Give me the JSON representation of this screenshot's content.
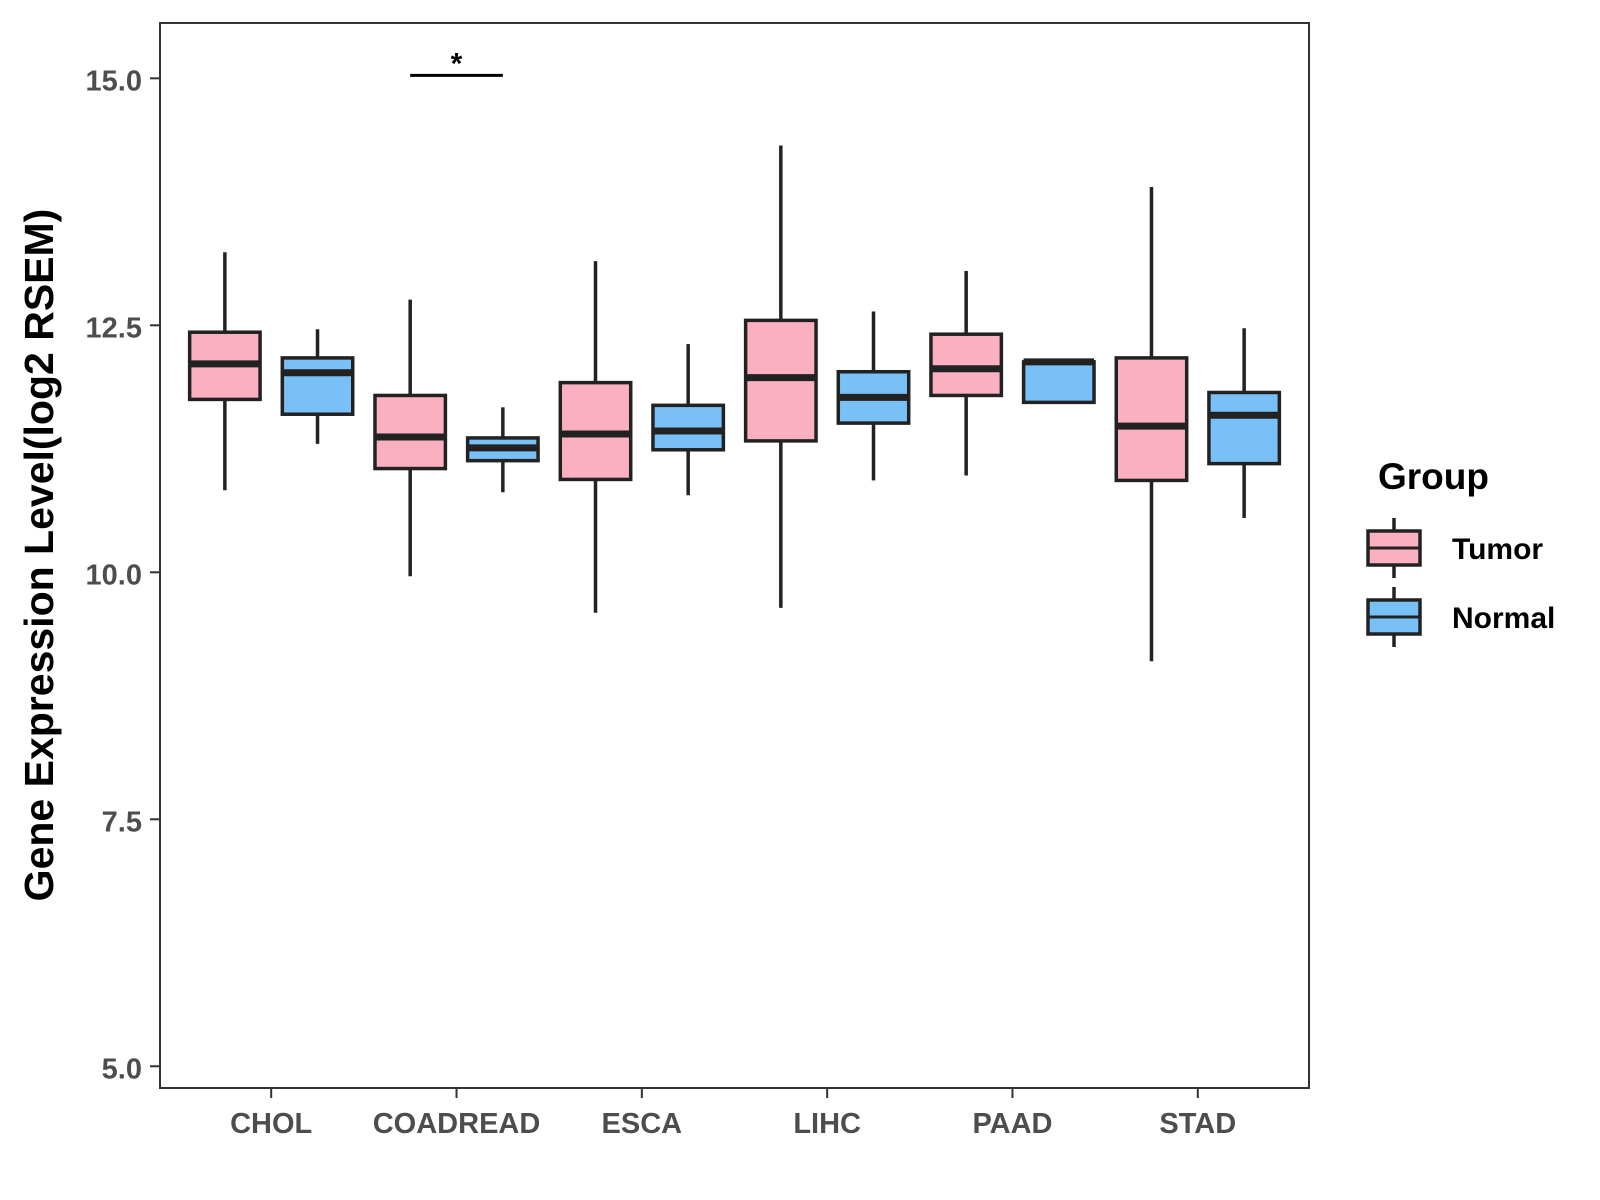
{
  "chart_data": {
    "type": "boxplot",
    "title": "",
    "xlabel": "",
    "ylabel": "Gene Expression Level(log2 RSEM)",
    "ylim": [
      4.78,
      15.56
    ],
    "yticks": [
      5.0,
      7.5,
      10.0,
      12.5,
      15.0
    ],
    "ytick_labels": [
      "5.0",
      "7.5",
      "10.0",
      "12.5",
      "15.0"
    ],
    "categories": [
      "CHOL",
      "COADREAD",
      "ESCA",
      "LIHC",
      "PAAD",
      "STAD"
    ],
    "legend": {
      "title": "Group",
      "position": "right",
      "entries": [
        "Tumor",
        "Normal"
      ]
    },
    "series": [
      {
        "name": "Tumor",
        "color": "#FAB0C1",
        "boxes": [
          {
            "min": 10.83,
            "q1": 11.75,
            "median": 12.11,
            "q3": 12.43,
            "max": 13.24
          },
          {
            "min": 9.96,
            "q1": 11.05,
            "median": 11.37,
            "q3": 11.79,
            "max": 12.76
          },
          {
            "min": 9.59,
            "q1": 10.94,
            "median": 11.4,
            "q3": 11.92,
            "max": 13.15
          },
          {
            "min": 9.64,
            "q1": 11.33,
            "median": 11.97,
            "q3": 12.55,
            "max": 14.32
          },
          {
            "min": 10.98,
            "q1": 11.79,
            "median": 12.06,
            "q3": 12.41,
            "max": 13.05
          },
          {
            "min": 9.1,
            "q1": 10.93,
            "median": 11.48,
            "q3": 12.17,
            "max": 13.9
          }
        ]
      },
      {
        "name": "Normal",
        "color": "#79C0F7",
        "boxes": [
          {
            "min": 11.3,
            "q1": 11.6,
            "median": 12.02,
            "q3": 12.17,
            "max": 12.46
          },
          {
            "min": 10.81,
            "q1": 11.13,
            "median": 11.26,
            "q3": 11.36,
            "max": 11.67
          },
          {
            "min": 10.78,
            "q1": 11.24,
            "median": 11.43,
            "q3": 11.69,
            "max": 12.31
          },
          {
            "min": 10.93,
            "q1": 11.51,
            "median": 11.77,
            "q3": 12.03,
            "max": 12.64
          },
          {
            "min": 11.72,
            "q1": 11.72,
            "median": 12.13,
            "q3": 12.13,
            "max": 12.13
          },
          {
            "min": 10.55,
            "q1": 11.1,
            "median": 11.59,
            "q3": 11.82,
            "max": 12.47
          }
        ]
      }
    ],
    "annotations": [
      {
        "category": "COADREAD",
        "text": "*",
        "y": 15.03
      }
    ]
  }
}
